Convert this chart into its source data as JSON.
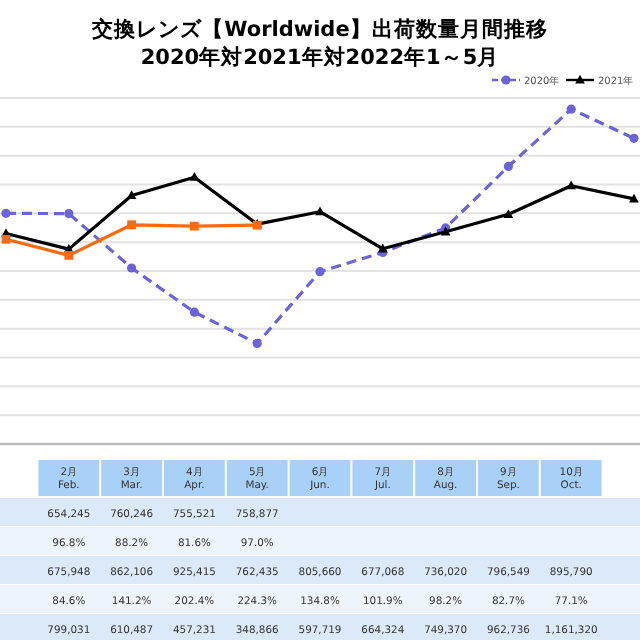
{
  "chart_data": {
    "type": "line",
    "title": "交換レンズ【Worldwide】出荷数量月間推移",
    "subtitle": "2020年対2021年対2022年1～5月",
    "categories": [
      null,
      "2月 Feb.",
      "3月 Mar.",
      "4月 Apr.",
      "5月 May.",
      "6月 Jun.",
      "7月 Jul.",
      "8月 Aug.",
      "9月 Sep.",
      "10月 Oct.",
      null
    ],
    "ylim": [
      0,
      1200000
    ],
    "yticks": [
      {
        "value": 0,
        "label": null
      },
      {
        "value": 100000,
        "label": null
      },
      {
        "value": 200000,
        "label": null
      },
      {
        "value": 300000,
        "label": null
      },
      {
        "value": 400000,
        "label": null
      },
      {
        "value": 500000,
        "label": null
      },
      {
        "value": 600000,
        "label": null
      },
      {
        "value": 700000,
        "label": null
      },
      {
        "value": 800000,
        "label": null
      },
      {
        "value": 900000,
        "label": null
      },
      {
        "value": 1000000,
        "label": null
      },
      {
        "value": 1100000,
        "label": null
      },
      {
        "value": 1200000,
        "label": null
      }
    ],
    "grid": "y",
    "legend": "top right",
    "series": [
      {
        "name": "2020年",
        "color": "#6a64d8",
        "line_style": "dashed",
        "marker": "circle",
        "values": [
          800000,
          799031,
          610487,
          457231,
          348866,
          597719,
          664324,
          749370,
          962736,
          1161320,
          1060000
        ],
        "value_labels": [
          null,
          "799,031",
          "610,487",
          "457,231",
          "348,866",
          "597,719",
          "664,324",
          "749,370",
          "962,736",
          "1,161,320",
          null
        ]
      },
      {
        "name": "2021年",
        "color": "#000000",
        "line_style": "solid",
        "marker": "triangle",
        "values": [
          730000,
          675948,
          862106,
          925415,
          762435,
          805660,
          677068,
          736020,
          796549,
          895790,
          850000
        ],
        "value_labels": [
          null,
          "675,948",
          "862,106",
          "925,415",
          "762,435",
          "805,660",
          "677,068",
          "736,020",
          "796,549",
          "895,790",
          null
        ]
      },
      {
        "color": "#ff6a10",
        "line_style": "solid",
        "marker": "square",
        "values": [
          710000,
          654245,
          760246,
          755521,
          758877,
          null,
          null,
          null,
          null,
          null,
          null
        ],
        "value_labels": [
          null,
          "654,245",
          "760,246",
          "755,521",
          "758,877",
          null,
          null,
          null,
          null,
          null,
          null
        ]
      }
    ],
    "annotations": [
      "96.8%",
      "88.2%",
      "81.6%",
      "97.0%",
      "84.6%",
      "141.2%",
      "202.4%",
      "224.3%",
      "134.8%",
      "101.9%",
      "98.2%",
      "82.7%",
      "77.1%"
    ]
  }
}
